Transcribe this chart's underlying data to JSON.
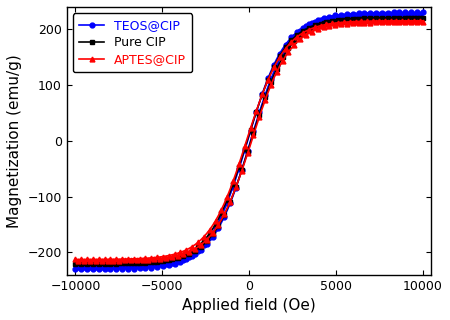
{
  "title": "",
  "xlabel": "Applied field (Oe)",
  "ylabel": "Magnetization (emu/g)",
  "xlim": [
    -10500,
    10500
  ],
  "ylim": [
    -240,
    240
  ],
  "xticks": [
    -10000,
    -5000,
    0,
    5000,
    10000
  ],
  "yticks": [
    -200,
    -100,
    0,
    100,
    200
  ],
  "series": [
    {
      "label": "TEOS@CIP",
      "color": "#0000FF",
      "marker": "o",
      "markersize": 3.5,
      "linewidth": 1.2,
      "Ms": 228,
      "Hc": 160,
      "a": 2200,
      "upper_shift": 8,
      "lower_shift": -8
    },
    {
      "label": "Pure CIP",
      "color": "#000000",
      "marker": "s",
      "markersize": 3.5,
      "linewidth": 1.2,
      "Ms": 220,
      "Hc": 130,
      "a": 2200,
      "upper_shift": 2,
      "lower_shift": -2
    },
    {
      "label": "APTES@CIP",
      "color": "#FF0000",
      "marker": "^",
      "markersize": 3.5,
      "linewidth": 1.2,
      "Ms": 214,
      "Hc": 110,
      "a": 2200,
      "upper_shift": -4,
      "lower_shift": 4
    }
  ],
  "background_color": "#ffffff",
  "legend_loc": "upper left",
  "legend_fontsize": 9,
  "axis_fontsize": 11,
  "tick_fontsize": 9,
  "markevery": 2
}
